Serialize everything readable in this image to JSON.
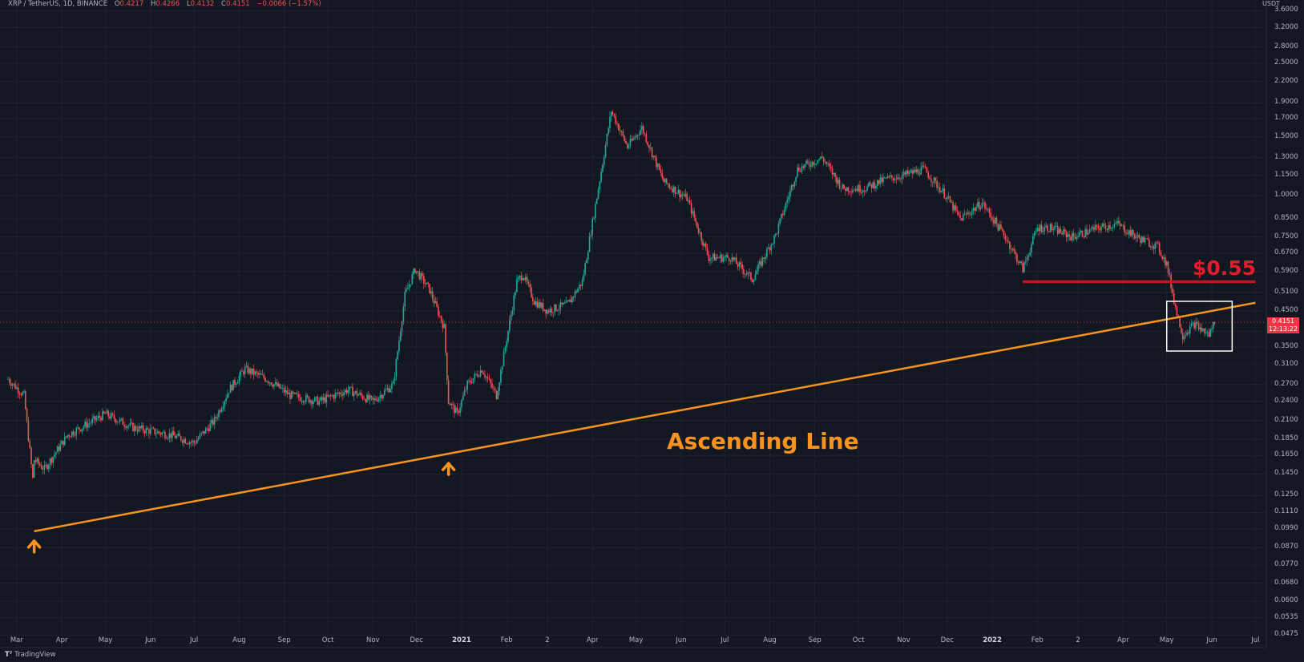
{
  "header": {
    "symbol": "XRP / TetherUS, 1D, BINANCE",
    "open_label": "O",
    "open": "0.4217",
    "high_label": "H",
    "high": "0.4266",
    "low_label": "L",
    "low": "0.4132",
    "close_label": "C",
    "close": "0.4151",
    "change": "−0.0066 (−1.57%)"
  },
  "price_axis": {
    "currency": "USDT",
    "ticks": [
      "3.6000",
      "3.2000",
      "2.8000",
      "2.5000",
      "2.2000",
      "1.9000",
      "1.7000",
      "1.5000",
      "1.3000",
      "1.1500",
      "1.0000",
      "0.8500",
      "0.7500",
      "0.6700",
      "0.5900",
      "0.5100",
      "0.4500",
      "0.3900",
      "0.3500",
      "0.3100",
      "0.2700",
      "0.2400",
      "0.2100",
      "0.1850",
      "0.1650",
      "0.1450",
      "0.1250",
      "0.1110",
      "0.0990",
      "0.0870",
      "0.0770",
      "0.0680",
      "0.0600",
      "0.0535",
      "0.0475"
    ],
    "last_price": "0.4151",
    "countdown": "12:13:22"
  },
  "time_axis": {
    "ticks": [
      "Mar",
      "Apr",
      "May",
      "Jun",
      "Jul",
      "Aug",
      "Sep",
      "Oct",
      "Nov",
      "Dec",
      "2021",
      "Feb",
      "2",
      "Apr",
      "May",
      "Jun",
      "Jul",
      "Aug",
      "Sep",
      "Oct",
      "Nov",
      "Dec",
      "2022",
      "Feb",
      "2",
      "Apr",
      "May",
      "Jun",
      "Jul"
    ]
  },
  "annotations": {
    "resistance_label": "$0.55",
    "trendline_label": "Ascending Line"
  },
  "colors": {
    "background": "#131722",
    "up": "#26a69a",
    "down": "#ef5350",
    "trendline": "#f7931e",
    "resistance": "#c01522",
    "box": "#ffffff"
  },
  "footer": {
    "brand": "TradingView"
  },
  "chart_data": {
    "type": "candlestick",
    "title": "XRP / TetherUS, 1D, BINANCE",
    "y_scale": "log",
    "ylim": [
      0.0455,
      3.75
    ],
    "xlim": [
      "2020-02-24",
      "2022-07-03"
    ],
    "x": [
      "2020-02-24",
      "2020-03-06",
      "2020-03-12",
      "2020-03-13",
      "2020-03-20",
      "2020-04-05",
      "2020-05-01",
      "2020-05-20",
      "2020-06-15",
      "2020-07-01",
      "2020-07-15",
      "2020-07-25",
      "2020-08-05",
      "2020-08-20",
      "2020-09-05",
      "2020-09-25",
      "2020-10-15",
      "2020-11-01",
      "2020-11-15",
      "2020-11-23",
      "2020-11-30",
      "2020-12-10",
      "2020-12-20",
      "2020-12-23",
      "2020-12-29",
      "2021-01-05",
      "2021-01-15",
      "2021-01-25",
      "2021-02-01",
      "2021-02-08",
      "2021-02-12",
      "2021-02-20",
      "2021-03-01",
      "2021-03-15",
      "2021-03-25",
      "2021-04-05",
      "2021-04-14",
      "2021-04-25",
      "2021-05-05",
      "2021-05-20",
      "2021-06-05",
      "2021-06-20",
      "2021-07-05",
      "2021-07-20",
      "2021-08-05",
      "2021-08-20",
      "2021-09-06",
      "2021-09-20",
      "2021-10-05",
      "2021-10-20",
      "2021-11-01",
      "2021-11-15",
      "2021-11-30",
      "2021-12-10",
      "2021-12-25",
      "2022-01-10",
      "2022-01-22",
      "2022-02-01",
      "2022-02-10",
      "2022-02-25",
      "2022-03-15",
      "2022-03-28",
      "2022-04-10",
      "2022-04-25",
      "2022-05-01",
      "2022-05-08",
      "2022-05-12",
      "2022-05-20",
      "2022-05-30",
      "2022-06-03"
    ],
    "values": [
      0.28,
      0.25,
      0.14,
      0.16,
      0.15,
      0.19,
      0.22,
      0.2,
      0.19,
      0.18,
      0.21,
      0.26,
      0.3,
      0.28,
      0.25,
      0.24,
      0.26,
      0.24,
      0.27,
      0.5,
      0.6,
      0.52,
      0.4,
      0.24,
      0.22,
      0.27,
      0.3,
      0.25,
      0.37,
      0.55,
      0.58,
      0.48,
      0.45,
      0.47,
      0.55,
      1.05,
      1.8,
      1.4,
      1.6,
      1.1,
      0.98,
      0.65,
      0.65,
      0.56,
      0.76,
      1.2,
      1.3,
      1.05,
      1.05,
      1.12,
      1.15,
      1.2,
      1.0,
      0.85,
      0.95,
      0.75,
      0.6,
      0.8,
      0.8,
      0.75,
      0.8,
      0.82,
      0.75,
      0.7,
      0.62,
      0.44,
      0.38,
      0.41,
      0.38,
      0.42
    ],
    "trendline": {
      "name": "Ascending Line",
      "start": [
        "2020-03-13",
        0.0975
      ],
      "end": [
        "2022-07-01",
        0.4753
      ]
    },
    "resistance": {
      "name": "$0.55",
      "value": 0.55,
      "from": "2022-01-22",
      "to": "2022-07-01"
    },
    "highlight_box": {
      "from": "2022-05-01",
      "to": "2022-06-15",
      "ymin": 0.34,
      "ymax": 0.48
    },
    "markers": [
      {
        "x": "2020-03-13",
        "type": "arrow-up"
      },
      {
        "x": "2020-12-23",
        "type": "arrow-up"
      }
    ]
  }
}
